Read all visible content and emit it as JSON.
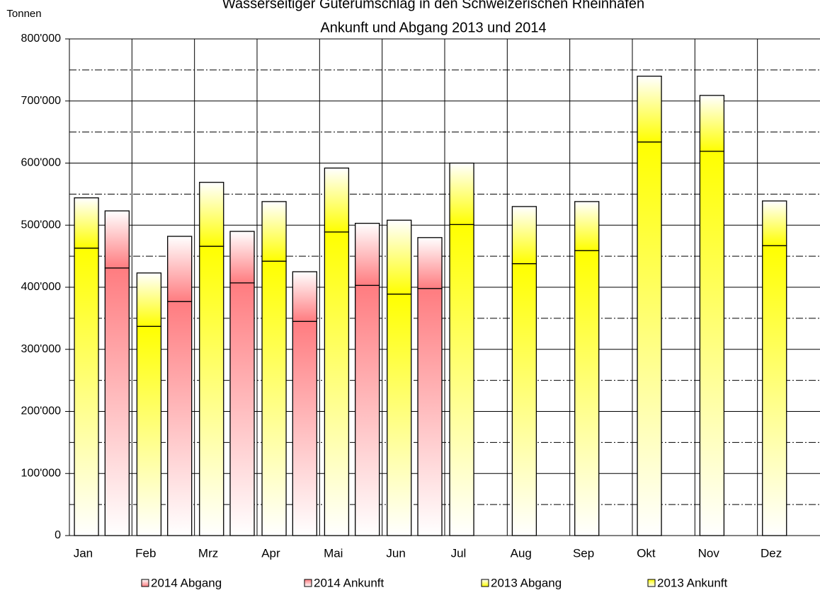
{
  "chart_data": {
    "type": "stacked-bar",
    "title": [
      "Wasserseitiger Güterumschlag in den Schweizerischen Rheinhäfen",
      "Ankunft und Abgang 2013 und 2014"
    ],
    "y_label": "Tonnen",
    "categories": [
      "Jan",
      "Feb",
      "Mrz",
      "Apr",
      "Mai",
      "Jun",
      "Jul",
      "Aug",
      "Sep",
      "Okt",
      "Nov",
      "Dez"
    ],
    "series": [
      {
        "name": "2014 Abgang",
        "color": "#ff7c80",
        "stack": "2014",
        "part": "top",
        "values": [
          92000,
          105000,
          83000,
          80000,
          100000,
          82000,
          null,
          null,
          null,
          null,
          null,
          null
        ]
      },
      {
        "name": "2014 Ankunft",
        "color": "#ff7c80",
        "stack": "2014",
        "part": "bottom",
        "values": [
          431000,
          377000,
          407000,
          345000,
          403000,
          398000,
          null,
          null,
          null,
          null,
          null,
          null
        ]
      },
      {
        "name": "2013 Abgang",
        "color": "#ffff00",
        "stack": "2013",
        "part": "top",
        "values": [
          81000,
          86000,
          103000,
          96000,
          103000,
          119000,
          99000,
          92000,
          79000,
          106000,
          90000,
          72000
        ]
      },
      {
        "name": "2013 Ankunft",
        "color": "#ffff00",
        "stack": "2013",
        "part": "bottom",
        "values": [
          463000,
          337000,
          466000,
          442000,
          489000,
          389000,
          501000,
          438000,
          459000,
          634000,
          619000,
          467000
        ]
      }
    ],
    "ylim": [
      0,
      800000
    ],
    "yticks": [
      0,
      {
        "value": 100000,
        "label": "100'000"
      },
      {
        "value": 200000,
        "label": "200'000"
      },
      {
        "value": 300000,
        "label": "300'000"
      },
      {
        "value": 400000,
        "label": "400'000"
      },
      {
        "value": 500000,
        "label": "500'000"
      },
      {
        "value": 600000,
        "label": "600'000"
      },
      {
        "value": 700000,
        "label": "700'000"
      },
      {
        "value": 800000,
        "label": "800'000"
      }
    ],
    "grid": true,
    "legend": "bottom"
  }
}
